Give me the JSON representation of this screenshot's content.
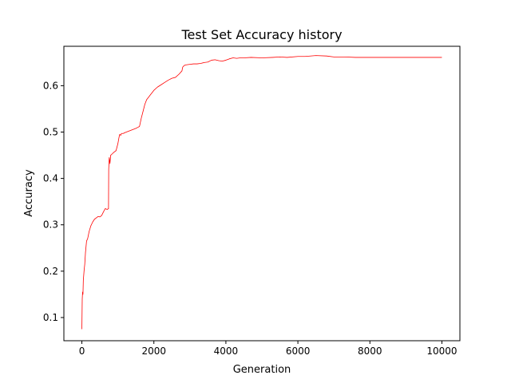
{
  "chart_data": {
    "type": "line",
    "title": "Test Set Accuracy history",
    "xlabel": "Generation",
    "ylabel": "Accuracy",
    "xlim": [
      -500,
      10500
    ],
    "ylim": [
      0.05,
      0.685
    ],
    "xticks": [
      0,
      2000,
      4000,
      6000,
      8000,
      10000
    ],
    "xtick_labels": [
      "0",
      "2000",
      "4000",
      "6000",
      "8000",
      "10000"
    ],
    "yticks": [
      0.1,
      0.2,
      0.3,
      0.4,
      0.5,
      0.6
    ],
    "ytick_labels": [
      "0.1",
      "0.2",
      "0.3",
      "0.4",
      "0.5",
      "0.6"
    ],
    "grid": false,
    "legend": "none",
    "series": [
      {
        "color": "#ff0000",
        "x": [
          0,
          10,
          20,
          30,
          40,
          60,
          80,
          100,
          130,
          160,
          200,
          250,
          300,
          350,
          400,
          450,
          500,
          550,
          600,
          650,
          700,
          740,
          745,
          760,
          780,
          800,
          830,
          870,
          900,
          950,
          1000,
          1030,
          1050,
          1080,
          1100,
          1150,
          1200,
          1300,
          1400,
          1500,
          1550,
          1600,
          1650,
          1700,
          1750,
          1800,
          1900,
          2000,
          2100,
          2200,
          2300,
          2400,
          2500,
          2600,
          2700,
          2780,
          2800,
          2850,
          2900,
          3000,
          3100,
          3200,
          3300,
          3400,
          3500,
          3600,
          3700,
          3800,
          3900,
          4000,
          4100,
          4200,
          4300,
          4400,
          4500,
          4700,
          5000,
          5300,
          5500,
          5700,
          6000,
          6200,
          6500,
          6800,
          7000,
          7300,
          7600,
          8000,
          8500,
          9000,
          9500,
          10000
        ],
        "y": [
          0.075,
          0.14,
          0.155,
          0.15,
          0.18,
          0.2,
          0.215,
          0.24,
          0.265,
          0.27,
          0.285,
          0.298,
          0.306,
          0.312,
          0.315,
          0.318,
          0.317,
          0.32,
          0.328,
          0.335,
          0.333,
          0.335,
          0.42,
          0.445,
          0.432,
          0.45,
          0.452,
          0.455,
          0.457,
          0.46,
          0.475,
          0.488,
          0.495,
          0.493,
          0.497,
          0.497,
          0.499,
          0.502,
          0.505,
          0.508,
          0.51,
          0.512,
          0.53,
          0.545,
          0.56,
          0.57,
          0.58,
          0.59,
          0.597,
          0.602,
          0.607,
          0.612,
          0.616,
          0.618,
          0.625,
          0.632,
          0.64,
          0.644,
          0.645,
          0.646,
          0.647,
          0.647,
          0.648,
          0.65,
          0.651,
          0.655,
          0.656,
          0.654,
          0.653,
          0.655,
          0.658,
          0.66,
          0.659,
          0.66,
          0.66,
          0.661,
          0.66,
          0.661,
          0.662,
          0.661,
          0.663,
          0.663,
          0.665,
          0.664,
          0.662,
          0.662,
          0.661,
          0.661,
          0.661,
          0.661,
          0.661,
          0.661
        ]
      }
    ]
  }
}
